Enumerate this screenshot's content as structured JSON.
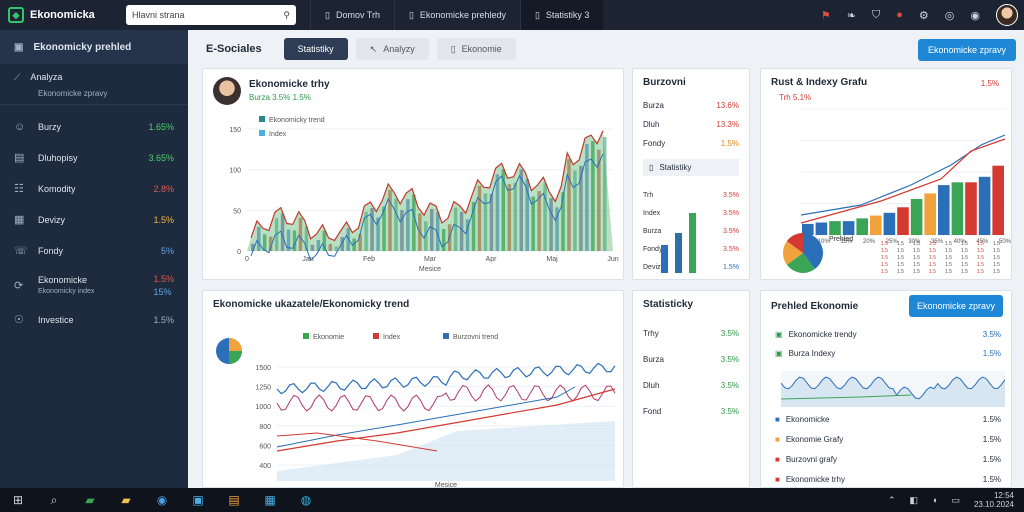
{
  "app": {
    "name": "Ekonomicka",
    "search_placeholder": "Hlavni strana"
  },
  "top_tabs": [
    {
      "label": "Domov  Trh"
    },
    {
      "label": "Ekonomicke prehledy"
    },
    {
      "label": "Statistiky 3"
    }
  ],
  "sidebar": {
    "header": "Ekonomicky prehled",
    "sub": {
      "label": "Analyza",
      "note": "Ekonomicke zpravy"
    },
    "items": [
      {
        "label": "Burzy",
        "value": "1.65%",
        "color": "#4bd26b"
      },
      {
        "label": "Dluhopisy",
        "value": "3.65%",
        "color": "#4bd26b"
      },
      {
        "label": "Komodity",
        "value": "2.8%",
        "color": "#e05a4f"
      },
      {
        "label": "Devizy",
        "value": "1.5%",
        "color": "#f2b53a"
      },
      {
        "label": "Fondy",
        "value": "5%",
        "color": "#5aa8e8"
      },
      {
        "label": "Ekonomicke",
        "note": "Ekonomicky index",
        "value": "1.5%",
        "color": "#e05a4f",
        "value2": "15%"
      },
      {
        "label": "Investice",
        "value": "1.5%",
        "color": "#9fb0c6"
      }
    ]
  },
  "subbar": {
    "title": "E-Sociales",
    "tab1": "Statistiky",
    "tab2": "Analyzy",
    "tab3": "Ekonomie",
    "action": "Ekonomicke zpravy"
  },
  "card1": {
    "title": "Ekonomicke trhy",
    "sub": "Burza  3.5%  1.5%",
    "legend": [
      "Ekonomicky trend",
      "Index"
    ],
    "yticks": [
      "150",
      "100",
      "50",
      "0"
    ],
    "xticks": [
      "0",
      "Jan",
      "Feb",
      "Mar",
      "Apr",
      "Maj",
      "Jun"
    ],
    "xlabel": "Mesice"
  },
  "card2": {
    "title": "Burzovni",
    "rows": [
      {
        "l": "Burza",
        "v": "13.6%",
        "c": "red"
      },
      {
        "l": "Dluh",
        "v": "13.3%",
        "c": "red"
      },
      {
        "l": "Fondy",
        "v": "1.5%",
        "c": "orange"
      }
    ],
    "panel": "Statistiky",
    "rows2": [
      {
        "l": "Trh",
        "v": "3.5%"
      },
      {
        "l": "Index",
        "v": "3.5%"
      },
      {
        "l": "Burza",
        "v": "3.5%"
      },
      {
        "l": "Fondy",
        "v": "3.5%"
      },
      {
        "l": "Devizy",
        "v": "1.5%"
      }
    ]
  },
  "card3": {
    "title": "Rust & Indexy Grafu",
    "sub": "Trh  5.1%",
    "val": "1.5%",
    "xticks": [
      "5%",
      "10%",
      "15%",
      "20%",
      "25%",
      "30%",
      "35%",
      "40%",
      "45%",
      "50%"
    ],
    "pie_title": "Prehled"
  },
  "card4": {
    "title": "Ekonomicke ukazatele/Ekonomicky trend",
    "legend": [
      "Ekonomie",
      "Index",
      "Burzovni trend"
    ],
    "yticks": [
      "1500",
      "1250",
      "1000",
      "800",
      "600",
      "400"
    ],
    "xlabel": "Mesice"
  },
  "card5": {
    "title": "Statisticky",
    "rows": [
      {
        "l": "Trhy",
        "v": "3.5%"
      },
      {
        "l": "Burza",
        "v": "3.5%"
      },
      {
        "l": "Dluh",
        "v": "3.5%"
      },
      {
        "l": "Fond",
        "v": "3.5%"
      }
    ]
  },
  "card6": {
    "title": "Prehled Ekonomie",
    "action": "Ekonomicke zpravy",
    "rows": [
      {
        "l": "Ekonomicke trendy",
        "v": "3.5%"
      },
      {
        "l": "Burza Indexy",
        "v": "1.5%"
      }
    ],
    "list": [
      {
        "l": "Ekonomicke",
        "v": "1.5%"
      },
      {
        "l": "Ekonomie Grafy",
        "v": "1.5%"
      },
      {
        "l": "Burzovni grafy",
        "v": "1.5%"
      },
      {
        "l": "Ekonomicke trhy",
        "v": "1.5%"
      }
    ]
  },
  "taskbar": {
    "time": "12:54",
    "date": "23.10.2024"
  },
  "colors": {
    "green": "#3aa655",
    "blue": "#2a6fb8",
    "red": "#d33a32",
    "orange": "#f2a23a",
    "purple": "#8a7fc0"
  }
}
